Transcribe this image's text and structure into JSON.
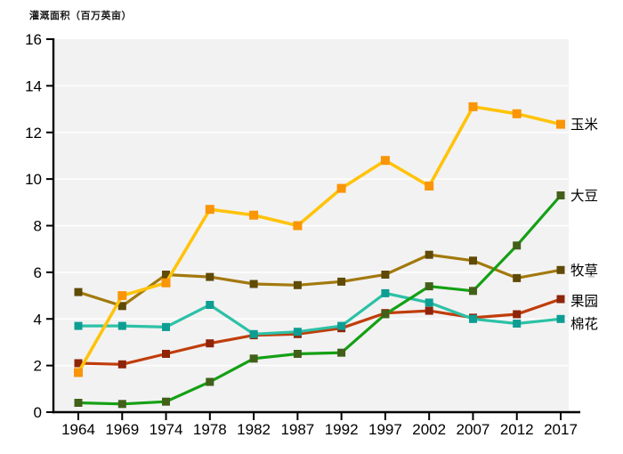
{
  "page": {
    "background": "#ffffff"
  },
  "chart_data": {
    "type": "line",
    "title": "灌溉面积（百万英亩）",
    "xlabel": "",
    "ylabel": "灌溉面积（百万英亩）",
    "categories": [
      "1964",
      "1969",
      "1974",
      "1978",
      "1982",
      "1987",
      "1992",
      "1997",
      "2002",
      "2007",
      "2012",
      "2017"
    ],
    "ylim": [
      0,
      16
    ],
    "yticks": [
      0,
      2,
      4,
      6,
      8,
      10,
      12,
      14,
      16
    ],
    "grid": "horizontal",
    "grid_color": "#ffffff",
    "plot_bg_color": "#f2f2f2",
    "axis_color": "#000000",
    "legend_position": "right-of-line-ends",
    "draw_order": [
      "orchard",
      "pasture",
      "cotton",
      "corn",
      "soybean"
    ],
    "series": [
      {
        "name": "玉米",
        "slug": "corn",
        "line_color": "#ffc30b",
        "marker_color": "#f99507",
        "marker": "square",
        "label_dy": 0,
        "values": [
          1.7,
          5.0,
          5.55,
          8.7,
          8.45,
          8.0,
          9.6,
          10.8,
          9.7,
          13.1,
          12.8,
          12.35
        ]
      },
      {
        "name": "大豆",
        "slug": "soybean",
        "line_color": "#14a014",
        "marker_color": "#42601a",
        "marker": "square",
        "label_dy": 0,
        "values": [
          0.4,
          0.35,
          0.45,
          1.3,
          2.3,
          2.5,
          2.55,
          4.2,
          5.4,
          5.2,
          7.15,
          9.3
        ]
      },
      {
        "name": "牧草",
        "slug": "pasture",
        "line_color": "#a2790d",
        "marker_color": "#5f4a06",
        "marker": "square",
        "label_dy": 0,
        "values": [
          5.15,
          4.55,
          5.9,
          5.8,
          5.5,
          5.45,
          5.6,
          5.9,
          6.75,
          6.5,
          5.75,
          6.1
        ]
      },
      {
        "name": "果园",
        "slug": "orchard",
        "line_color": "#c03d0b",
        "marker_color": "#8e2509",
        "marker": "square",
        "label_dy": 2,
        "values": [
          2.1,
          2.05,
          2.5,
          2.95,
          3.3,
          3.35,
          3.6,
          4.25,
          4.35,
          4.05,
          4.2,
          4.85
        ]
      },
      {
        "name": "棉花",
        "slug": "cotton",
        "line_color": "#2cc1a6",
        "marker_color": "#0d9d93",
        "marker": "square",
        "label_dy": 5,
        "values": [
          3.7,
          3.7,
          3.65,
          4.6,
          3.35,
          3.45,
          3.7,
          5.1,
          4.7,
          4.0,
          3.8,
          4.0
        ]
      }
    ]
  }
}
